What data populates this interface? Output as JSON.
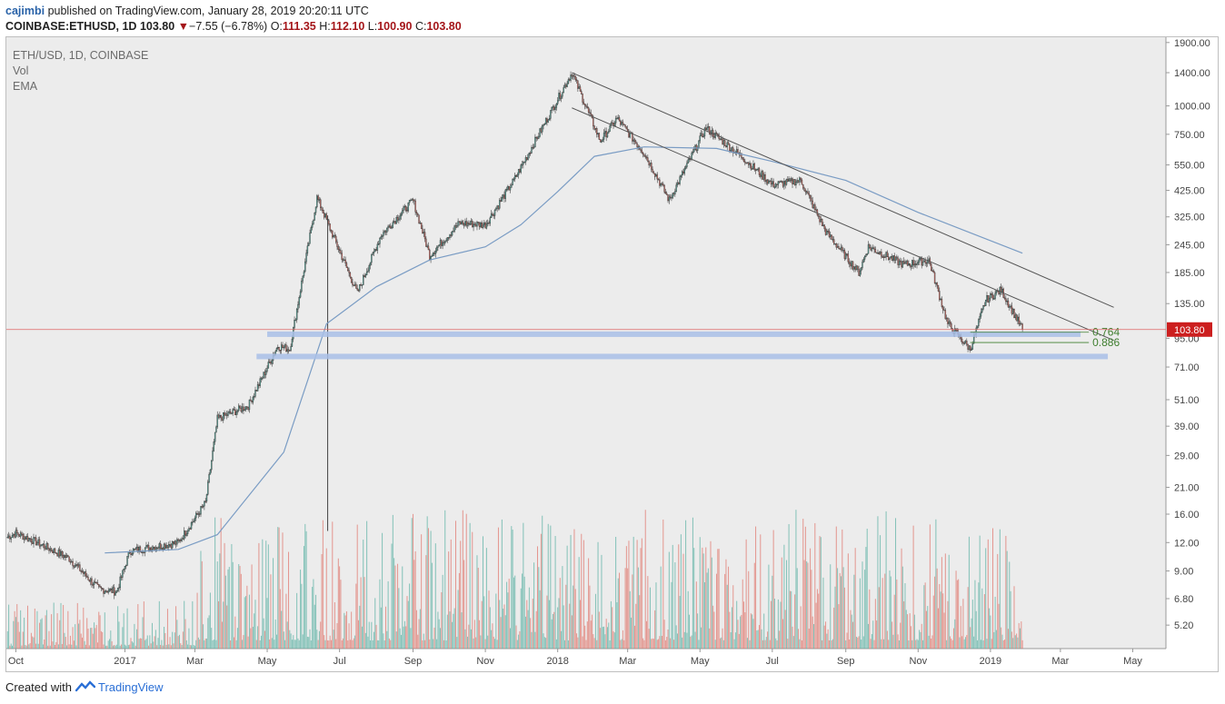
{
  "header": {
    "user": "cajimbi",
    "published": "published on TradingView.com, January 28, 2019 20:20:11 UTC"
  },
  "ohlc": {
    "symbol": "COINBASE:ETHUSD, 1D",
    "last": "103.80",
    "change": "−7.55 (−6.78%)",
    "o_label": "O:",
    "o": "111.35",
    "h_label": "H:",
    "h": "112.10",
    "l_label": "L:",
    "l": "100.90",
    "c_label": "C:",
    "c": "103.80"
  },
  "legend": {
    "title": "ETH/USD, 1D, COINBASE",
    "vol": "Vol",
    "ema": "EMA"
  },
  "footer": {
    "created": "Created with",
    "brand": "TradingView"
  },
  "colors": {
    "up": "#5fb3a6",
    "down": "#e0786f",
    "ema": "#7a9cc4",
    "zone": "#a9c0e8",
    "price_line": "#e06666",
    "price_badge": "#cc1f1f",
    "fib": "#3f7f2f",
    "background": "#ececec"
  },
  "chart_data": {
    "type": "candlestick",
    "symbol": "ETH/USD",
    "y_scale": "log",
    "ylim": [
      4,
      2200
    ],
    "y_ticks": [
      "1900.00",
      "1400.00",
      "1000.00",
      "750.00",
      "550.00",
      "425.00",
      "325.00",
      "245.00",
      "185.00",
      "135.00",
      "95.00",
      "71.00",
      "51.00",
      "39.00",
      "29.00",
      "21.00",
      "16.00",
      "12.00",
      "9.00",
      "6.80",
      "5.20"
    ],
    "x_ticks": [
      "Oct",
      "2017",
      "Mar",
      "May",
      "Jul",
      "Sep",
      "Nov",
      "2018",
      "Mar",
      "May",
      "Jul",
      "Sep",
      "Nov",
      "2019",
      "Mar",
      "May"
    ],
    "last_price": "103.80",
    "price_path": [
      {
        "date": "2016-09-24",
        "close": 12.7
      },
      {
        "date": "2016-10-01",
        "close": 13.2
      },
      {
        "date": "2016-10-15",
        "close": 12.3
      },
      {
        "date": "2016-11-15",
        "close": 10.2
      },
      {
        "date": "2016-12-10",
        "close": 7.5
      },
      {
        "date": "2016-12-25",
        "close": 7.3
      },
      {
        "date": "2017-01-05",
        "close": 11.0
      },
      {
        "date": "2017-02-15",
        "close": 12.0
      },
      {
        "date": "2017-03-10",
        "close": 18.0
      },
      {
        "date": "2017-03-20",
        "close": 42.0
      },
      {
        "date": "2017-04-15",
        "close": 48.0
      },
      {
        "date": "2017-05-10",
        "close": 88.0
      },
      {
        "date": "2017-05-20",
        "close": 85.0
      },
      {
        "date": "2017-06-05",
        "close": 250.0
      },
      {
        "date": "2017-06-12",
        "close": 395.0
      },
      {
        "date": "2017-07-16",
        "close": 150.0
      },
      {
        "date": "2017-08-05",
        "close": 270.0
      },
      {
        "date": "2017-09-01",
        "close": 385.0
      },
      {
        "date": "2017-09-15",
        "close": 220.0
      },
      {
        "date": "2017-10-10",
        "close": 305.0
      },
      {
        "date": "2017-11-01",
        "close": 300.0
      },
      {
        "date": "2017-11-25",
        "close": 470.0
      },
      {
        "date": "2017-12-20",
        "close": 820.0
      },
      {
        "date": "2018-01-13",
        "close": 1400.0
      },
      {
        "date": "2018-02-06",
        "close": 700.0
      },
      {
        "date": "2018-02-20",
        "close": 880.0
      },
      {
        "date": "2018-03-15",
        "close": 620.0
      },
      {
        "date": "2018-04-05",
        "close": 385.0
      },
      {
        "date": "2018-05-06",
        "close": 800.0
      },
      {
        "date": "2018-06-05",
        "close": 600.0
      },
      {
        "date": "2018-07-01",
        "close": 450.0
      },
      {
        "date": "2018-07-25",
        "close": 470.0
      },
      {
        "date": "2018-08-15",
        "close": 280.0
      },
      {
        "date": "2018-09-12",
        "close": 185.0
      },
      {
        "date": "2018-09-20",
        "close": 240.0
      },
      {
        "date": "2018-10-20",
        "close": 200.0
      },
      {
        "date": "2018-11-10",
        "close": 210.0
      },
      {
        "date": "2018-11-26",
        "close": 110.0
      },
      {
        "date": "2018-12-15",
        "close": 85.0
      },
      {
        "date": "2018-12-28",
        "close": 140.0
      },
      {
        "date": "2019-01-10",
        "close": 155.0
      },
      {
        "date": "2019-01-28",
        "close": 103.8
      }
    ],
    "ema_path": [
      {
        "date": "2016-12-15",
        "value": 10.8
      },
      {
        "date": "2017-02-15",
        "value": 11.2
      },
      {
        "date": "2017-03-20",
        "value": 13.0
      },
      {
        "date": "2017-05-15",
        "value": 30.0
      },
      {
        "date": "2017-06-20",
        "value": 110.0
      },
      {
        "date": "2017-08-01",
        "value": 160.0
      },
      {
        "date": "2017-09-15",
        "value": 210.0
      },
      {
        "date": "2017-11-01",
        "value": 240.0
      },
      {
        "date": "2017-12-01",
        "value": 300.0
      },
      {
        "date": "2018-01-01",
        "value": 420.0
      },
      {
        "date": "2018-02-01",
        "value": 600.0
      },
      {
        "date": "2018-03-15",
        "value": 660.0
      },
      {
        "date": "2018-05-15",
        "value": 650.0
      },
      {
        "date": "2018-07-01",
        "value": 570.0
      },
      {
        "date": "2018-09-01",
        "value": 470.0
      },
      {
        "date": "2018-11-01",
        "value": 340.0
      },
      {
        "date": "2019-01-28",
        "value": 225.0
      }
    ],
    "volume_scale": {
      "min": 0,
      "max": 100
    },
    "drawings": {
      "trendlines": [
        {
          "from": {
            "date": "2018-01-13",
            "value": 1400
          },
          "to": {
            "date": "2019-04-15",
            "value": 130
          }
        },
        {
          "from": {
            "date": "2018-01-13",
            "value": 980
          },
          "to": {
            "date": "2019-04-15",
            "value": 93
          }
        }
      ],
      "zones": [
        {
          "value": 99,
          "from": "2017-05-01",
          "to": "2019-03-18"
        },
        {
          "value": 79,
          "from": "2017-04-22",
          "to": "2019-04-10"
        }
      ],
      "fib_levels": [
        {
          "label": "0.764",
          "value": 101
        },
        {
          "label": "0.886",
          "value": 91
        }
      ]
    }
  }
}
